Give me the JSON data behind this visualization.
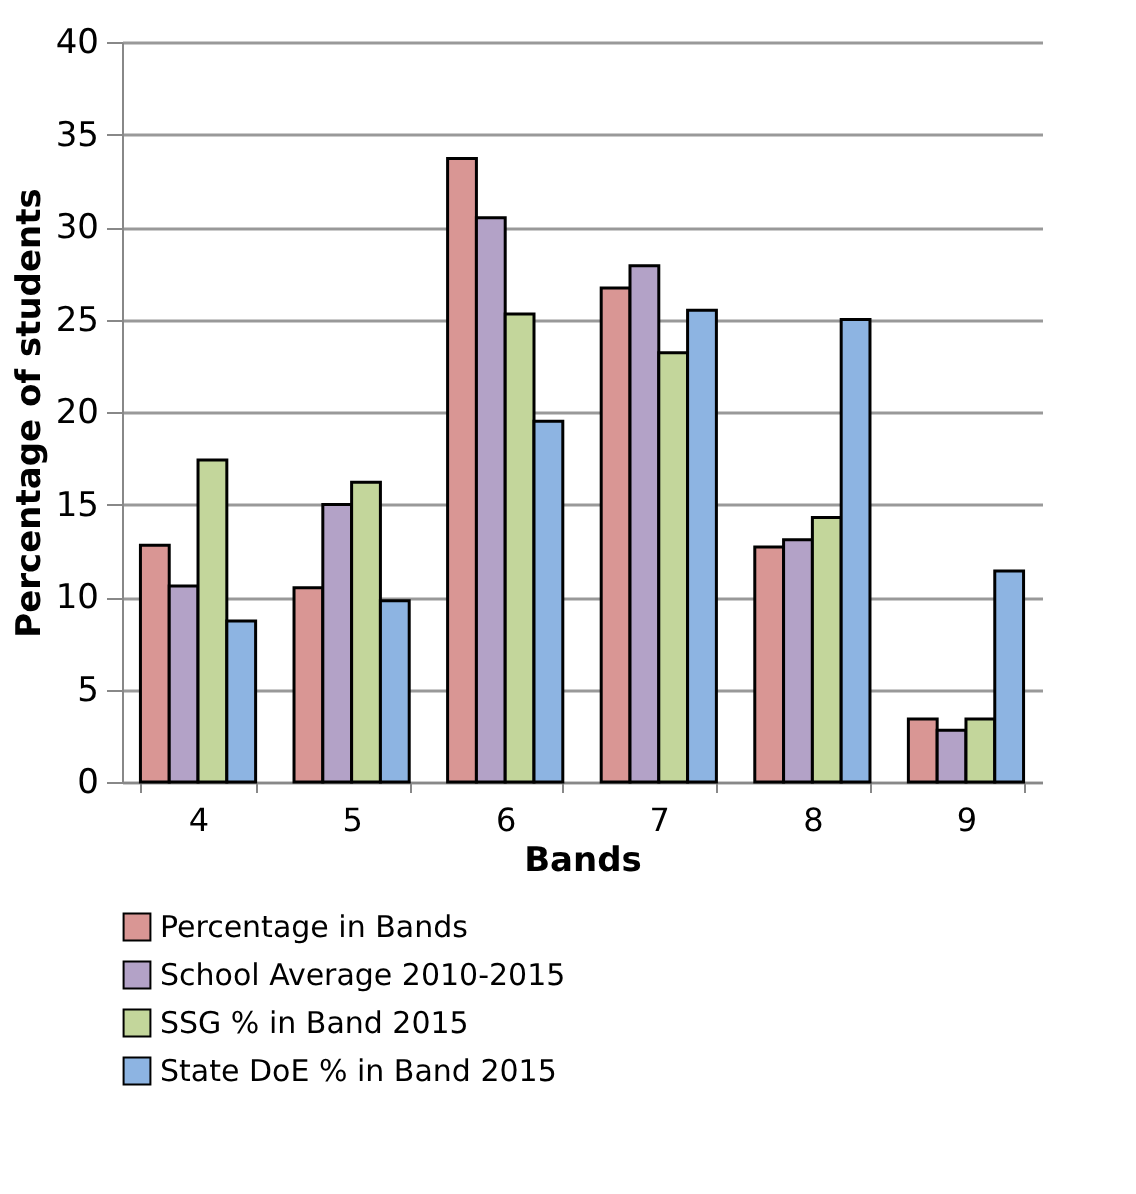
{
  "chart_data": {
    "type": "bar",
    "xlabel": "Bands",
    "ylabel": "Percentage of students",
    "categories": [
      "4",
      "5",
      "6",
      "7",
      "8",
      "9"
    ],
    "series": [
      {
        "name": "Percentage in Bands",
        "color": "#d99694",
        "values": [
          12.8,
          10.5,
          33.7,
          26.7,
          12.7,
          3.4
        ]
      },
      {
        "name": "School Average 2010-2015",
        "color": "#b3a2c7",
        "values": [
          10.6,
          15.0,
          30.5,
          27.9,
          13.1,
          2.8
        ]
      },
      {
        "name": "SSG % in Band 2015",
        "color": "#c3d69b",
        "values": [
          17.4,
          16.2,
          25.3,
          23.2,
          14.3,
          3.4
        ]
      },
      {
        "name": "State DoE % in Band 2015",
        "color": "#8db4e2",
        "values": [
          8.7,
          9.8,
          19.5,
          25.5,
          25.0,
          11.4
        ]
      }
    ],
    "ylim": [
      0,
      40
    ],
    "yticks": [
      0,
      5,
      10,
      15,
      20,
      25,
      30,
      35,
      40
    ],
    "grid": "y",
    "legend": "bottom"
  }
}
